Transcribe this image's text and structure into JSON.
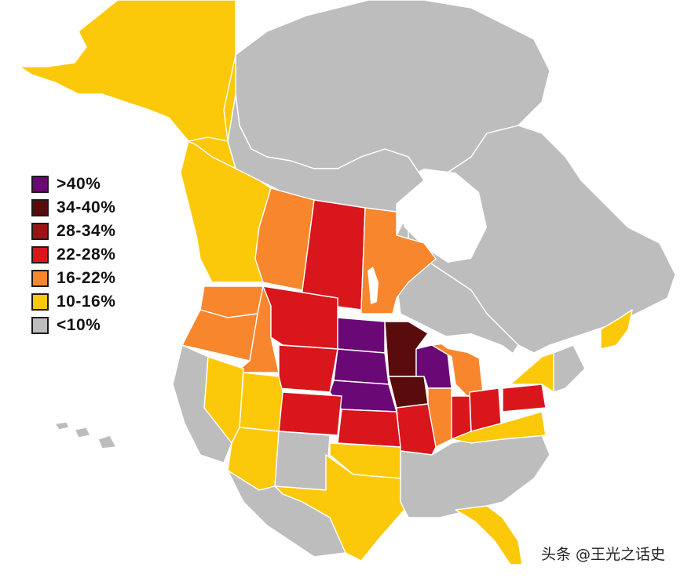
{
  "legend": {
    "items": [
      {
        "label": ">40%",
        "color": "#6a0875"
      },
      {
        "label": "34-40%",
        "color": "#5a0c0c"
      },
      {
        "label": "28-34%",
        "color": "#9a1414"
      },
      {
        "label": "22-28%",
        "color": "#d8161c"
      },
      {
        "label": "16-22%",
        "color": "#f7862d"
      },
      {
        "label": "10-16%",
        "color": "#fcc80a"
      },
      {
        "label": "<10%",
        "color": "#bdbdbd"
      }
    ]
  },
  "colors": {
    "gt40": "#6a0875",
    "c34_40": "#5a0c0c",
    "c28_34": "#9a1414",
    "c22_28": "#d8161c",
    "c16_22": "#f7862d",
    "c10_16": "#fcc80a",
    "lt10": "#bdbdbd"
  },
  "watermark": "头条 @王光之话史"
}
